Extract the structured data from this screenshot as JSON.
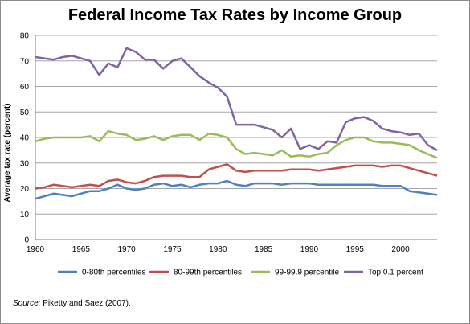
{
  "chart_data": {
    "type": "line",
    "title": "Federal Income Tax Rates by Income Group",
    "xlabel": "",
    "ylabel": "Average tax rate (percent)",
    "xlim": [
      1960,
      2004
    ],
    "ylim": [
      0,
      80
    ],
    "xticks": [
      1960,
      1965,
      1970,
      1975,
      1980,
      1985,
      1990,
      1995,
      2000
    ],
    "yticks": [
      0,
      10,
      20,
      30,
      40,
      50,
      60,
      70,
      80
    ],
    "grid": true,
    "legend_position": "bottom",
    "source_label": "Source:",
    "source_text": " Piketty and Saez (2007).",
    "x": [
      1960,
      1961,
      1962,
      1963,
      1964,
      1965,
      1966,
      1967,
      1968,
      1969,
      1970,
      1971,
      1972,
      1973,
      1974,
      1975,
      1976,
      1977,
      1978,
      1979,
      1980,
      1981,
      1982,
      1983,
      1984,
      1985,
      1986,
      1987,
      1988,
      1989,
      1990,
      1991,
      1992,
      1993,
      1994,
      1995,
      1996,
      1997,
      1998,
      1999,
      2000,
      2001,
      2002,
      2003,
      2004
    ],
    "series": [
      {
        "name": "0-80th percentiles",
        "color": "#4f81bd",
        "values": [
          16,
          17,
          18,
          17.5,
          17,
          18,
          19,
          19,
          20,
          21.5,
          20,
          19.5,
          20,
          21.5,
          22,
          21,
          21.5,
          20.5,
          21.5,
          22,
          22,
          23,
          21.5,
          21,
          22,
          22,
          22,
          21.5,
          22,
          22,
          22,
          21.5,
          21.5,
          21.5,
          21.5,
          21.5,
          21.5,
          21.5,
          21,
          21,
          21,
          19,
          18.5,
          18,
          17.5
        ]
      },
      {
        "name": "80-99th percentiles",
        "color": "#c0504d",
        "values": [
          20,
          20.5,
          21.5,
          21,
          20.5,
          21,
          21.5,
          21,
          23,
          23.5,
          22.5,
          22,
          23,
          24.5,
          25,
          25,
          25,
          24.5,
          24.5,
          27.5,
          28.5,
          29.5,
          27,
          26.5,
          27,
          27,
          27,
          27,
          27.5,
          27.5,
          27.5,
          27,
          27.5,
          28,
          28.5,
          29,
          29,
          29,
          28.5,
          29,
          29,
          28,
          27,
          26,
          25
        ]
      },
      {
        "name": "99-99.9 percentile",
        "color": "#9bbb59",
        "values": [
          38.5,
          39.5,
          40,
          40,
          40,
          40,
          40.5,
          38.5,
          42.5,
          41.5,
          41,
          39,
          39.5,
          40.5,
          39,
          40.5,
          41,
          41,
          39,
          41.5,
          41,
          40,
          35.5,
          33.5,
          34,
          33.5,
          33,
          35,
          32.5,
          33,
          32.5,
          33.5,
          34,
          37,
          39,
          40,
          40,
          38.5,
          38,
          38,
          37.5,
          37,
          35,
          33.5,
          32
        ]
      },
      {
        "name": "Top 0.1 percent",
        "color": "#8064a2",
        "values": [
          71.5,
          71,
          70.5,
          71.5,
          72,
          71,
          70,
          64.5,
          69,
          67.5,
          75,
          73.5,
          70.5,
          70.5,
          67,
          70,
          71,
          67.5,
          64,
          61.5,
          59.5,
          56,
          45,
          45,
          45,
          44,
          43,
          40,
          43.5,
          35.5,
          37,
          35.5,
          38.5,
          38,
          46,
          47.5,
          48,
          46.5,
          43.5,
          42.5,
          42,
          41,
          41.5,
          37,
          35
        ]
      }
    ]
  }
}
